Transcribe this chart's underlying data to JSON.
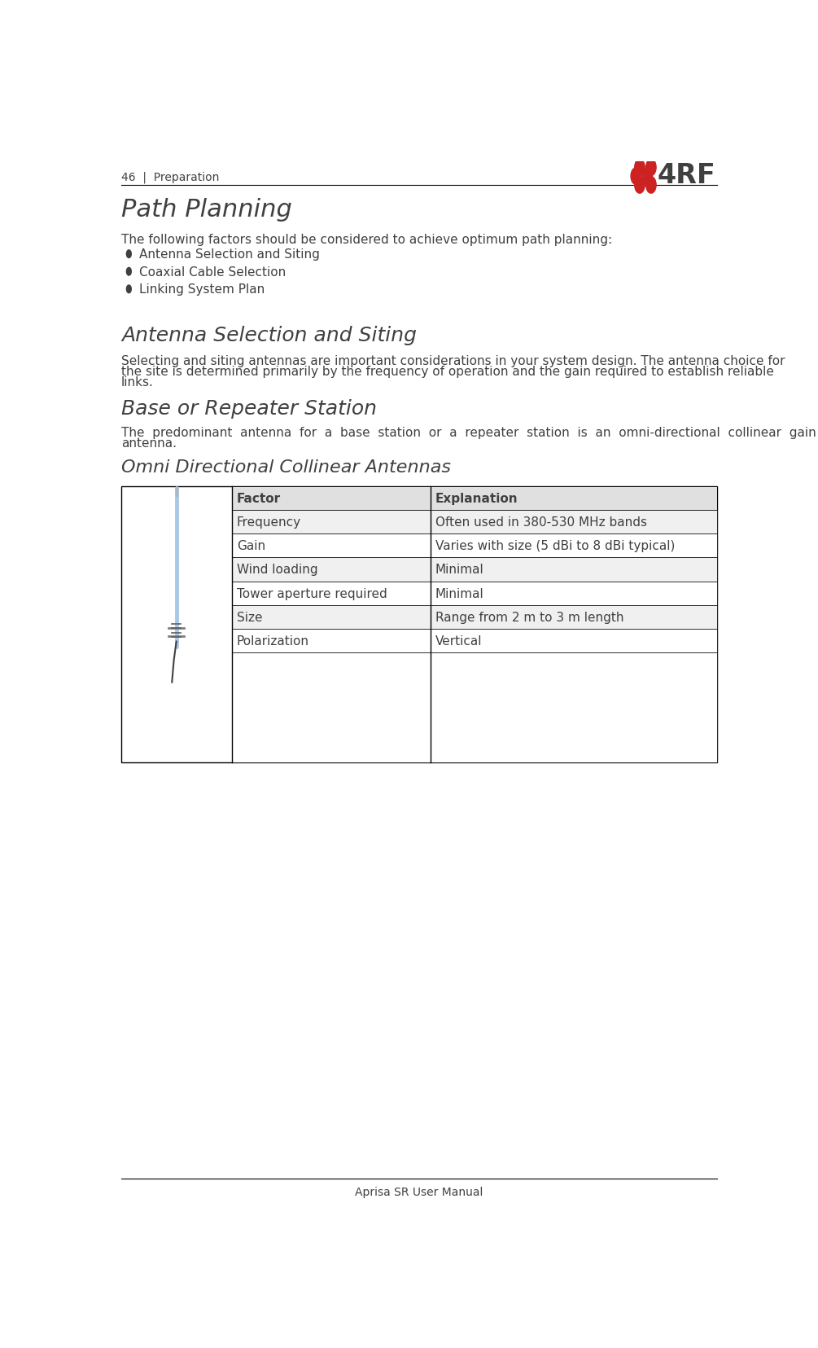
{
  "page_number": "46",
  "header_text": "Preparation",
  "footer_text": "Aprisa SR User Manual",
  "title": "Path Planning",
  "intro_text": "The following factors should be considered to achieve optimum path planning:",
  "bullets": [
    "Antenna Selection and Siting",
    "Coaxial Cable Selection",
    "Linking System Plan"
  ],
  "section1_title": "Antenna Selection and Siting",
  "section1_body_line1": "Selecting and siting antennas are important considerations in your system design. The antenna choice for",
  "section1_body_line2": "the site is determined primarily by the frequency of operation and the gain required to establish reliable",
  "section1_body_line3": "links.",
  "section2_title": "Base or Repeater Station",
  "section2_body_line1": "The  predominant  antenna  for  a  base  station  or  a  repeater  station  is  an  omni-directional  collinear  gain",
  "section2_body_line2": "antenna.",
  "subsection_title": "Omni Directional Collinear Antennas",
  "table_headers": [
    "Factor",
    "Explanation"
  ],
  "table_rows": [
    [
      "Frequency",
      "Often used in 380-530 MHz bands"
    ],
    [
      "Gain",
      "Varies with size (5 dBi to 8 dBi typical)"
    ],
    [
      "Wind loading",
      "Minimal"
    ],
    [
      "Tower aperture required",
      "Minimal"
    ],
    [
      "Size",
      "Range from 2 m to 3 m length"
    ],
    [
      "Polarization",
      "Vertical"
    ]
  ],
  "bg_color": "#ffffff",
  "text_color": "#404040",
  "header_color": "#404040",
  "title_color": "#404040",
  "section_title_color": "#404040",
  "table_border_color": "#000000",
  "table_header_bg": "#e0e0e0",
  "logo_red_color": "#cc2222",
  "logo_gray_color": "#404040",
  "header_line_color": "#000000",
  "footer_line_color": "#000000",
  "antenna_color": "#a8c8e8",
  "antenna_mount_color": "#808080"
}
